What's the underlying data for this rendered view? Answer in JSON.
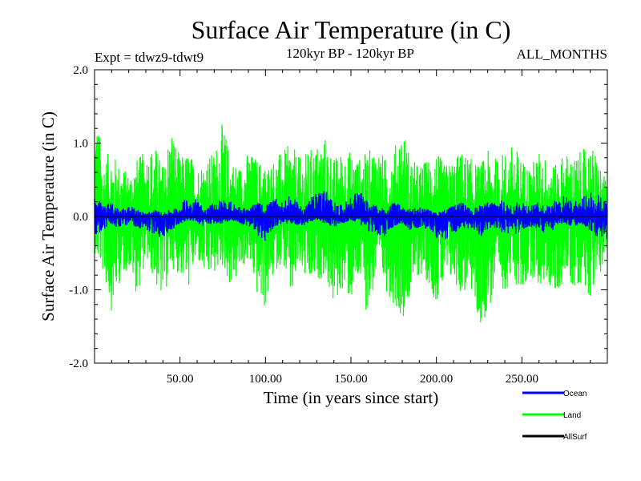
{
  "chart_data": {
    "type": "line",
    "title": "Surface Air Temperature (in C)",
    "subtitle": "120kyr BP - 120kyr BP",
    "experiment_label": "Expt = tdwz9-tdwt9",
    "months_label": "ALL_MONTHS",
    "xlabel": "Time (in years since start)",
    "ylabel": "Surface Air Temperature (in C)",
    "xlim": [
      0,
      300
    ],
    "ylim": [
      -2.0,
      2.0
    ],
    "x_ticks": [
      50,
      100,
      150,
      200,
      250
    ],
    "x_tick_labels": [
      "50.00",
      "100.00",
      "150.00",
      "200.00",
      "250.00"
    ],
    "y_ticks": [
      -2.0,
      -1.0,
      0.0,
      1.0,
      2.0
    ],
    "y_tick_labels": [
      "-2.0",
      "-1.0",
      "0.0",
      "1.0",
      "2.0"
    ],
    "zero_line": true,
    "grid": false,
    "legend_position": "bottom-right",
    "series": [
      {
        "name": "Land",
        "color": "#00ff00",
        "x": [
          0,
          5,
          10,
          15,
          20,
          25,
          30,
          35,
          40,
          45,
          50,
          55,
          60,
          65,
          70,
          75,
          80,
          85,
          90,
          95,
          100,
          105,
          110,
          115,
          120,
          125,
          130,
          135,
          140,
          145,
          150,
          155,
          160,
          165,
          170,
          175,
          180,
          185,
          190,
          195,
          200,
          205,
          210,
          215,
          220,
          225,
          230,
          235,
          240,
          245,
          250,
          255,
          260,
          265,
          270,
          275,
          280,
          285,
          290,
          295,
          300
        ],
        "min": [
          -0.5,
          -0.8,
          -1.3,
          -0.9,
          -0.7,
          -1.1,
          -0.6,
          -0.9,
          -1.2,
          -0.7,
          -0.8,
          -1.0,
          -0.6,
          -0.9,
          -0.8,
          -0.7,
          -1.0,
          -0.8,
          -0.6,
          -1.1,
          -1.3,
          -0.8,
          -0.6,
          -1.2,
          -0.7,
          -1.0,
          -0.9,
          -0.8,
          -1.3,
          -1.0,
          -1.2,
          -0.9,
          -1.4,
          -0.8,
          -1.0,
          -1.2,
          -1.4,
          -1.1,
          -0.8,
          -0.9,
          -1.2,
          -1.0,
          -0.9,
          -1.1,
          -1.0,
          -1.6,
          -1.3,
          -1.1,
          -1.0,
          -0.9,
          -1.1,
          -0.8,
          -1.0,
          -0.9,
          -1.2,
          -0.8,
          -1.0,
          -0.9,
          -1.1,
          -0.8,
          -0.6
        ],
        "max": [
          1.6,
          0.8,
          0.9,
          0.7,
          0.6,
          0.8,
          0.9,
          1.0,
          0.7,
          1.3,
          0.8,
          0.9,
          0.7,
          0.8,
          0.9,
          1.3,
          0.8,
          0.7,
          0.9,
          0.8,
          0.7,
          0.8,
          0.9,
          1.0,
          0.8,
          0.9,
          1.0,
          1.1,
          0.8,
          0.9,
          0.9,
          0.8,
          0.9,
          1.0,
          0.8,
          0.9,
          1.3,
          0.8,
          0.7,
          0.8,
          0.9,
          0.7,
          0.8,
          0.9,
          0.8,
          0.7,
          0.9,
          0.8,
          0.9,
          1.0,
          0.8,
          0.7,
          0.9,
          0.8,
          0.7,
          0.9,
          0.8,
          0.9,
          1.0,
          0.8,
          0.4
        ]
      },
      {
        "name": "Ocean",
        "color": "#0000ff",
        "x": [
          0,
          5,
          10,
          15,
          20,
          25,
          30,
          35,
          40,
          45,
          50,
          55,
          60,
          65,
          70,
          75,
          80,
          85,
          90,
          95,
          100,
          105,
          110,
          115,
          120,
          125,
          130,
          135,
          140,
          145,
          150,
          155,
          160,
          165,
          170,
          175,
          180,
          185,
          190,
          195,
          200,
          205,
          210,
          215,
          220,
          225,
          230,
          235,
          240,
          245,
          250,
          255,
          260,
          265,
          270,
          275,
          280,
          285,
          290,
          295,
          300
        ],
        "min": [
          -0.3,
          -0.2,
          -0.1,
          -0.2,
          -0.1,
          -0.15,
          -0.2,
          -0.25,
          -0.3,
          -0.2,
          -0.1,
          -0.05,
          -0.1,
          -0.15,
          -0.1,
          -0.1,
          -0.05,
          -0.1,
          -0.15,
          -0.25,
          -0.35,
          -0.15,
          -0.1,
          -0.1,
          -0.15,
          -0.1,
          -0.05,
          -0.1,
          -0.15,
          -0.1,
          -0.05,
          -0.1,
          -0.2,
          -0.25,
          -0.3,
          -0.15,
          -0.1,
          -0.2,
          -0.15,
          -0.2,
          -0.3,
          -0.35,
          -0.25,
          -0.2,
          -0.15,
          -0.3,
          -0.2,
          -0.15,
          -0.25,
          -0.3,
          -0.2,
          -0.15,
          -0.2,
          -0.25,
          -0.15,
          -0.1,
          -0.15,
          -0.1,
          -0.2,
          -0.3,
          -0.35
        ],
        "max": [
          0.3,
          0.15,
          0.2,
          0.1,
          0.15,
          0.1,
          0.05,
          0.1,
          0.05,
          0.1,
          0.15,
          0.3,
          0.25,
          0.1,
          0.2,
          0.25,
          0.2,
          0.15,
          0.1,
          0.2,
          0.15,
          0.25,
          0.2,
          0.3,
          0.15,
          0.2,
          0.35,
          0.4,
          0.2,
          0.15,
          0.3,
          0.35,
          0.2,
          0.15,
          0.1,
          0.2,
          0.15,
          0.1,
          0.15,
          0.1,
          0.05,
          0.1,
          0.15,
          0.2,
          0.1,
          0.15,
          0.2,
          0.25,
          0.2,
          0.15,
          0.25,
          0.15,
          0.2,
          0.15,
          0.25,
          0.3,
          0.2,
          0.25,
          0.35,
          0.3,
          0.2
        ]
      }
    ],
    "legend": [
      {
        "name": "Ocean",
        "color": "#0000ff"
      },
      {
        "name": "Land",
        "color": "#00ff00"
      },
      {
        "name": "AllSurf",
        "color": "#000000"
      }
    ]
  }
}
